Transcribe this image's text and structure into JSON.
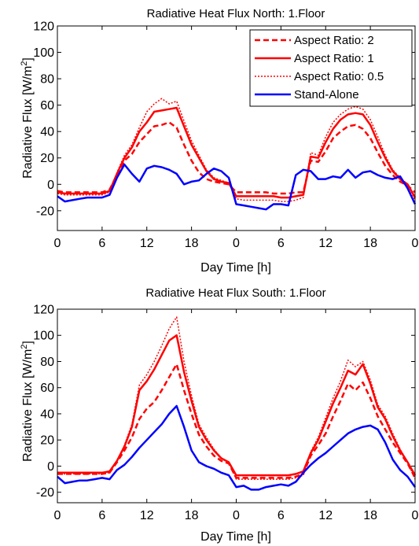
{
  "chart_data": [
    {
      "type": "line",
      "title": "Radiative Heat Flux North: 1.Floor",
      "xlabel": "Day Time [h]",
      "ylabel_main": "Radiative Flux [W/m",
      "ylabel_sup": "2",
      "ylabel_end": "]",
      "xlim": [
        0,
        48
      ],
      "ylim": [
        -35,
        120
      ],
      "xticks": [
        0,
        6,
        12,
        18,
        24,
        30,
        36,
        42,
        48
      ],
      "xtick_labels": [
        "0",
        "6",
        "12",
        "18",
        "0",
        "6",
        "12",
        "18",
        "0"
      ],
      "yticks": [
        -20,
        0,
        20,
        40,
        60,
        80,
        100,
        120
      ],
      "ytick_labels": [
        "-20",
        "0",
        "20",
        "40",
        "60",
        "80",
        "100",
        "120"
      ],
      "grid": false,
      "legend_position": "top-right",
      "x": [
        0,
        1,
        2,
        3,
        4,
        5,
        6,
        7,
        8,
        9,
        10,
        11,
        12,
        13,
        14,
        15,
        16,
        17,
        18,
        19,
        20,
        21,
        22,
        23,
        24,
        25,
        26,
        27,
        28,
        29,
        30,
        31,
        32,
        33,
        34,
        35,
        36,
        37,
        38,
        39,
        40,
        41,
        42,
        43,
        44,
        45,
        46,
        47,
        48
      ],
      "series": [
        {
          "name": "Aspect Ratio: 2",
          "color": "#ff0000",
          "style": "dashed",
          "values": [
            -5,
            -6,
            -6,
            -6,
            -6,
            -6,
            -6,
            -4,
            7,
            18,
            23,
            32,
            38,
            44,
            45,
            47,
            43,
            30,
            18,
            9,
            4,
            2,
            1,
            0,
            -6,
            -6,
            -6,
            -6,
            -6,
            -7,
            -7,
            -7,
            -6,
            -6,
            18,
            17,
            25,
            35,
            40,
            44,
            45,
            42,
            35,
            24,
            14,
            7,
            2,
            -1,
            -6
          ]
        },
        {
          "name": "Aspect Ratio: 1",
          "color": "#ff0000",
          "style": "solid",
          "values": [
            -6,
            -7,
            -7,
            -7,
            -7,
            -7,
            -7,
            -5,
            8,
            20,
            28,
            40,
            47,
            55,
            56,
            57,
            58,
            44,
            30,
            20,
            10,
            4,
            2,
            1,
            -9,
            -9,
            -9,
            -9,
            -9,
            -9,
            -10,
            -10,
            -9,
            -8,
            21,
            20,
            32,
            42,
            49,
            53,
            54,
            53,
            45,
            32,
            20,
            10,
            4,
            0,
            -10
          ]
        },
        {
          "name": "Aspect Ratio: 0.5",
          "color": "#ff0000",
          "style": "dotted",
          "values": [
            -7,
            -8,
            -8,
            -8,
            -8,
            -8,
            -8,
            -6,
            9,
            22,
            30,
            43,
            55,
            61,
            65,
            61,
            63,
            48,
            33,
            22,
            11,
            5,
            3,
            1,
            -11,
            -12,
            -12,
            -12,
            -12,
            -12,
            -13,
            -13,
            -12,
            -10,
            24,
            22,
            36,
            47,
            53,
            57,
            59,
            57,
            49,
            36,
            22,
            11,
            5,
            0,
            -12
          ]
        },
        {
          "name": "Stand-Alone",
          "color": "#0000ff",
          "style": "solid",
          "values": [
            -9,
            -13,
            -12,
            -11,
            -10,
            -10,
            -10,
            -8,
            5,
            15,
            8,
            2,
            12,
            14,
            13,
            11,
            8,
            0,
            2,
            3,
            8,
            12,
            10,
            5,
            -15,
            -16,
            -17,
            -18,
            -19,
            -15,
            -15,
            -16,
            7,
            11,
            10,
            4,
            4,
            6,
            5,
            11,
            5,
            9,
            10,
            7,
            5,
            4,
            6,
            -3,
            -15
          ]
        }
      ]
    },
    {
      "type": "line",
      "title": "Radiative Heat Flux South: 1.Floor",
      "xlabel": "Day Time [h]",
      "ylabel_main": "Radiative Flux [W/m",
      "ylabel_sup": "2",
      "ylabel_end": "]",
      "xlim": [
        0,
        48
      ],
      "ylim": [
        -28,
        120
      ],
      "xticks": [
        0,
        6,
        12,
        18,
        24,
        30,
        36,
        42,
        48
      ],
      "xtick_labels": [
        "0",
        "6",
        "12",
        "18",
        "0",
        "6",
        "12",
        "18",
        "0"
      ],
      "yticks": [
        -20,
        0,
        20,
        40,
        60,
        80,
        100,
        120
      ],
      "ytick_labels": [
        "-20",
        "0",
        "20",
        "40",
        "60",
        "80",
        "100",
        "120"
      ],
      "grid": false,
      "x": [
        0,
        1,
        2,
        3,
        4,
        5,
        6,
        7,
        8,
        9,
        10,
        11,
        12,
        13,
        14,
        15,
        16,
        17,
        18,
        19,
        20,
        21,
        22,
        23,
        24,
        25,
        26,
        27,
        28,
        29,
        30,
        31,
        32,
        33,
        34,
        35,
        36,
        37,
        38,
        39,
        40,
        41,
        42,
        43,
        44,
        45,
        46,
        47,
        48
      ],
      "series": [
        {
          "name": "Aspect Ratio: 2",
          "color": "#ff0000",
          "style": "dashed",
          "values": [
            -6,
            -6,
            -6,
            -6,
            -6,
            -6,
            -6,
            -5,
            3,
            12,
            22,
            36,
            44,
            49,
            58,
            68,
            78,
            58,
            40,
            24,
            15,
            8,
            4,
            2,
            -9,
            -9,
            -9,
            -9,
            -9,
            -9,
            -9,
            -9,
            -8,
            -6,
            8,
            16,
            25,
            38,
            50,
            63,
            58,
            64,
            52,
            38,
            28,
            18,
            10,
            2,
            -9
          ]
        },
        {
          "name": "Aspect Ratio: 1",
          "color": "#ff0000",
          "style": "solid",
          "values": [
            -5,
            -5,
            -5,
            -5,
            -5,
            -5,
            -5,
            -4,
            4,
            15,
            30,
            58,
            65,
            74,
            85,
            96,
            100,
            72,
            50,
            30,
            20,
            12,
            6,
            3,
            -7,
            -7,
            -7,
            -7,
            -7,
            -7,
            -7,
            -7,
            -6,
            -4,
            10,
            20,
            34,
            48,
            60,
            73,
            70,
            78,
            63,
            45,
            36,
            23,
            12,
            3,
            -7
          ]
        },
        {
          "name": "Aspect Ratio: 0.5",
          "color": "#ff0000",
          "style": "dotted",
          "values": [
            -6,
            -6,
            -6,
            -6,
            -6,
            -6,
            -6,
            -5,
            4,
            16,
            32,
            62,
            70,
            80,
            92,
            105,
            114,
            80,
            54,
            32,
            22,
            13,
            6,
            3,
            -10,
            -10,
            -10,
            -10,
            -10,
            -10,
            -10,
            -10,
            -9,
            -7,
            11,
            22,
            37,
            52,
            65,
            81,
            76,
            80,
            66,
            47,
            38,
            25,
            13,
            3,
            -10
          ]
        },
        {
          "name": "Stand-Alone",
          "color": "#0000ff",
          "style": "solid",
          "values": [
            -8,
            -13,
            -12,
            -11,
            -11,
            -10,
            -9,
            -10,
            -3,
            1,
            7,
            14,
            20,
            26,
            32,
            40,
            46,
            30,
            12,
            3,
            0,
            -2,
            -5,
            -7,
            -16,
            -15,
            -18,
            -18,
            -16,
            -15,
            -14,
            -15,
            -12,
            -5,
            1,
            6,
            10,
            15,
            20,
            25,
            28,
            30,
            31,
            28,
            18,
            5,
            -3,
            -8,
            -16
          ]
        }
      ]
    }
  ]
}
